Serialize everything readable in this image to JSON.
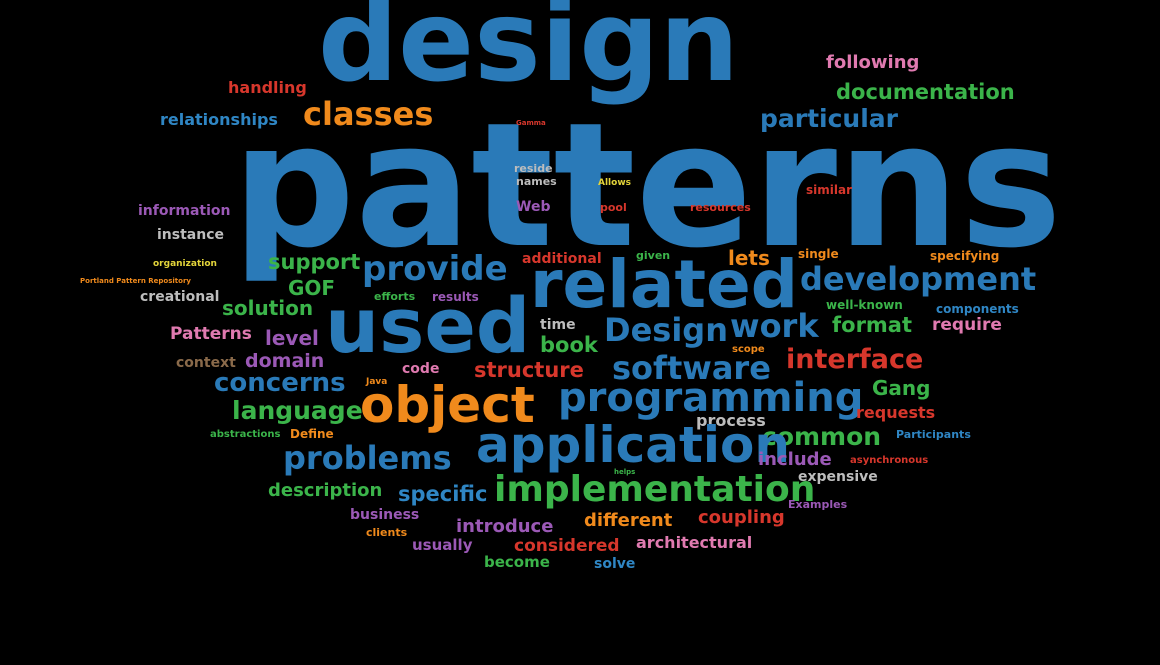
{
  "words": [
    {
      "text": "design",
      "color": "#2a7ab8"
    },
    {
      "text": "patterns",
      "color": "#2a7ab8"
    },
    {
      "text": "following",
      "color": "#e07ab0"
    },
    {
      "text": "handling",
      "color": "#d7372c"
    },
    {
      "text": "classes",
      "color": "#f08a1c"
    },
    {
      "text": "documentation",
      "color": "#3bb44a"
    },
    {
      "text": "relationships",
      "color": "#2f86c4"
    },
    {
      "text": "particular",
      "color": "#2a7ab8"
    },
    {
      "text": "Gamma",
      "color": "#d7372c"
    },
    {
      "text": "reside",
      "color": "#bdbdbd"
    },
    {
      "text": "names",
      "color": "#bdbdbd"
    },
    {
      "text": "Allows",
      "color": "#e3d43a"
    },
    {
      "text": "similar",
      "color": "#d7372c"
    },
    {
      "text": "information",
      "color": "#9b59b6"
    },
    {
      "text": "Web",
      "color": "#9b59b6"
    },
    {
      "text": "pool",
      "color": "#d7372c"
    },
    {
      "text": "resources",
      "color": "#d7372c"
    },
    {
      "text": "instance",
      "color": "#bdbdbd"
    },
    {
      "text": "additional",
      "color": "#d7372c"
    },
    {
      "text": "given",
      "color": "#3bb44a"
    },
    {
      "text": "lets",
      "color": "#f08a1c"
    },
    {
      "text": "single",
      "color": "#f08a1c"
    },
    {
      "text": "specifying",
      "color": "#f08a1c"
    },
    {
      "text": "support",
      "color": "#3bb44a"
    },
    {
      "text": "provide",
      "color": "#2a7ab8"
    },
    {
      "text": "related",
      "color": "#2a7ab8"
    },
    {
      "text": "development",
      "color": "#2a7ab8"
    },
    {
      "text": "organization",
      "color": "#e3d43a"
    },
    {
      "text": "Portland Pattern Repository",
      "color": "#f08a1c"
    },
    {
      "text": "GOF",
      "color": "#3bb44a"
    },
    {
      "text": "creational",
      "color": "#bdbdbd"
    },
    {
      "text": "efforts",
      "color": "#3bb44a"
    },
    {
      "text": "results",
      "color": "#9b59b6"
    },
    {
      "text": "well-known",
      "color": "#3bb44a"
    },
    {
      "text": "components",
      "color": "#2f86c4"
    },
    {
      "text": "solution",
      "color": "#3bb44a"
    },
    {
      "text": "used",
      "color": "#2a7ab8"
    },
    {
      "text": "time",
      "color": "#bdbdbd"
    },
    {
      "text": "Design",
      "color": "#2a7ab8"
    },
    {
      "text": "work",
      "color": "#2a7ab8"
    },
    {
      "text": "format",
      "color": "#3bb44a"
    },
    {
      "text": "require",
      "color": "#e07ab0"
    },
    {
      "text": "Patterns",
      "color": "#e07ab0"
    },
    {
      "text": "level",
      "color": "#9b59b6"
    },
    {
      "text": "book",
      "color": "#3bb44a"
    },
    {
      "text": "scope",
      "color": "#f08a1c"
    },
    {
      "text": "context",
      "color": "#8a6a4a"
    },
    {
      "text": "domain",
      "color": "#9b59b6"
    },
    {
      "text": "interface",
      "color": "#d7372c"
    },
    {
      "text": "code",
      "color": "#e07ab0"
    },
    {
      "text": "structure",
      "color": "#d7372c"
    },
    {
      "text": "software",
      "color": "#2a7ab8"
    },
    {
      "text": "concerns",
      "color": "#2a7ab8"
    },
    {
      "text": "Java",
      "color": "#f08a1c"
    },
    {
      "text": "Gang",
      "color": "#3bb44a"
    },
    {
      "text": "object",
      "color": "#f08a1c"
    },
    {
      "text": "programming",
      "color": "#2a7ab8"
    },
    {
      "text": "language",
      "color": "#3bb44a"
    },
    {
      "text": "requests",
      "color": "#d7372c"
    },
    {
      "text": "process",
      "color": "#bdbdbd"
    },
    {
      "text": "abstractions",
      "color": "#3bb44a"
    },
    {
      "text": "Define",
      "color": "#f08a1c"
    },
    {
      "text": "common",
      "color": "#3bb44a"
    },
    {
      "text": "Participants",
      "color": "#2f86c4"
    },
    {
      "text": "application",
      "color": "#2a7ab8"
    },
    {
      "text": "problems",
      "color": "#2a7ab8"
    },
    {
      "text": "include",
      "color": "#9b59b6"
    },
    {
      "text": "asynchronous",
      "color": "#d7372c"
    },
    {
      "text": "helps",
      "color": "#3bb44a"
    },
    {
      "text": "expensive",
      "color": "#bdbdbd"
    },
    {
      "text": "description",
      "color": "#3bb44a"
    },
    {
      "text": "specific",
      "color": "#2f86c4"
    },
    {
      "text": "implementation",
      "color": "#3bb44a"
    },
    {
      "text": "Examples",
      "color": "#9b59b6"
    },
    {
      "text": "business",
      "color": "#9b59b6"
    },
    {
      "text": "different",
      "color": "#f08a1c"
    },
    {
      "text": "coupling",
      "color": "#d7372c"
    },
    {
      "text": "introduce",
      "color": "#9b59b6"
    },
    {
      "text": "clients",
      "color": "#f08a1c"
    },
    {
      "text": "usually",
      "color": "#9b59b6"
    },
    {
      "text": "considered",
      "color": "#d7372c"
    },
    {
      "text": "architectural",
      "color": "#e07ab0"
    },
    {
      "text": "become",
      "color": "#3bb44a"
    },
    {
      "text": "solve",
      "color": "#2f86c4"
    }
  ]
}
